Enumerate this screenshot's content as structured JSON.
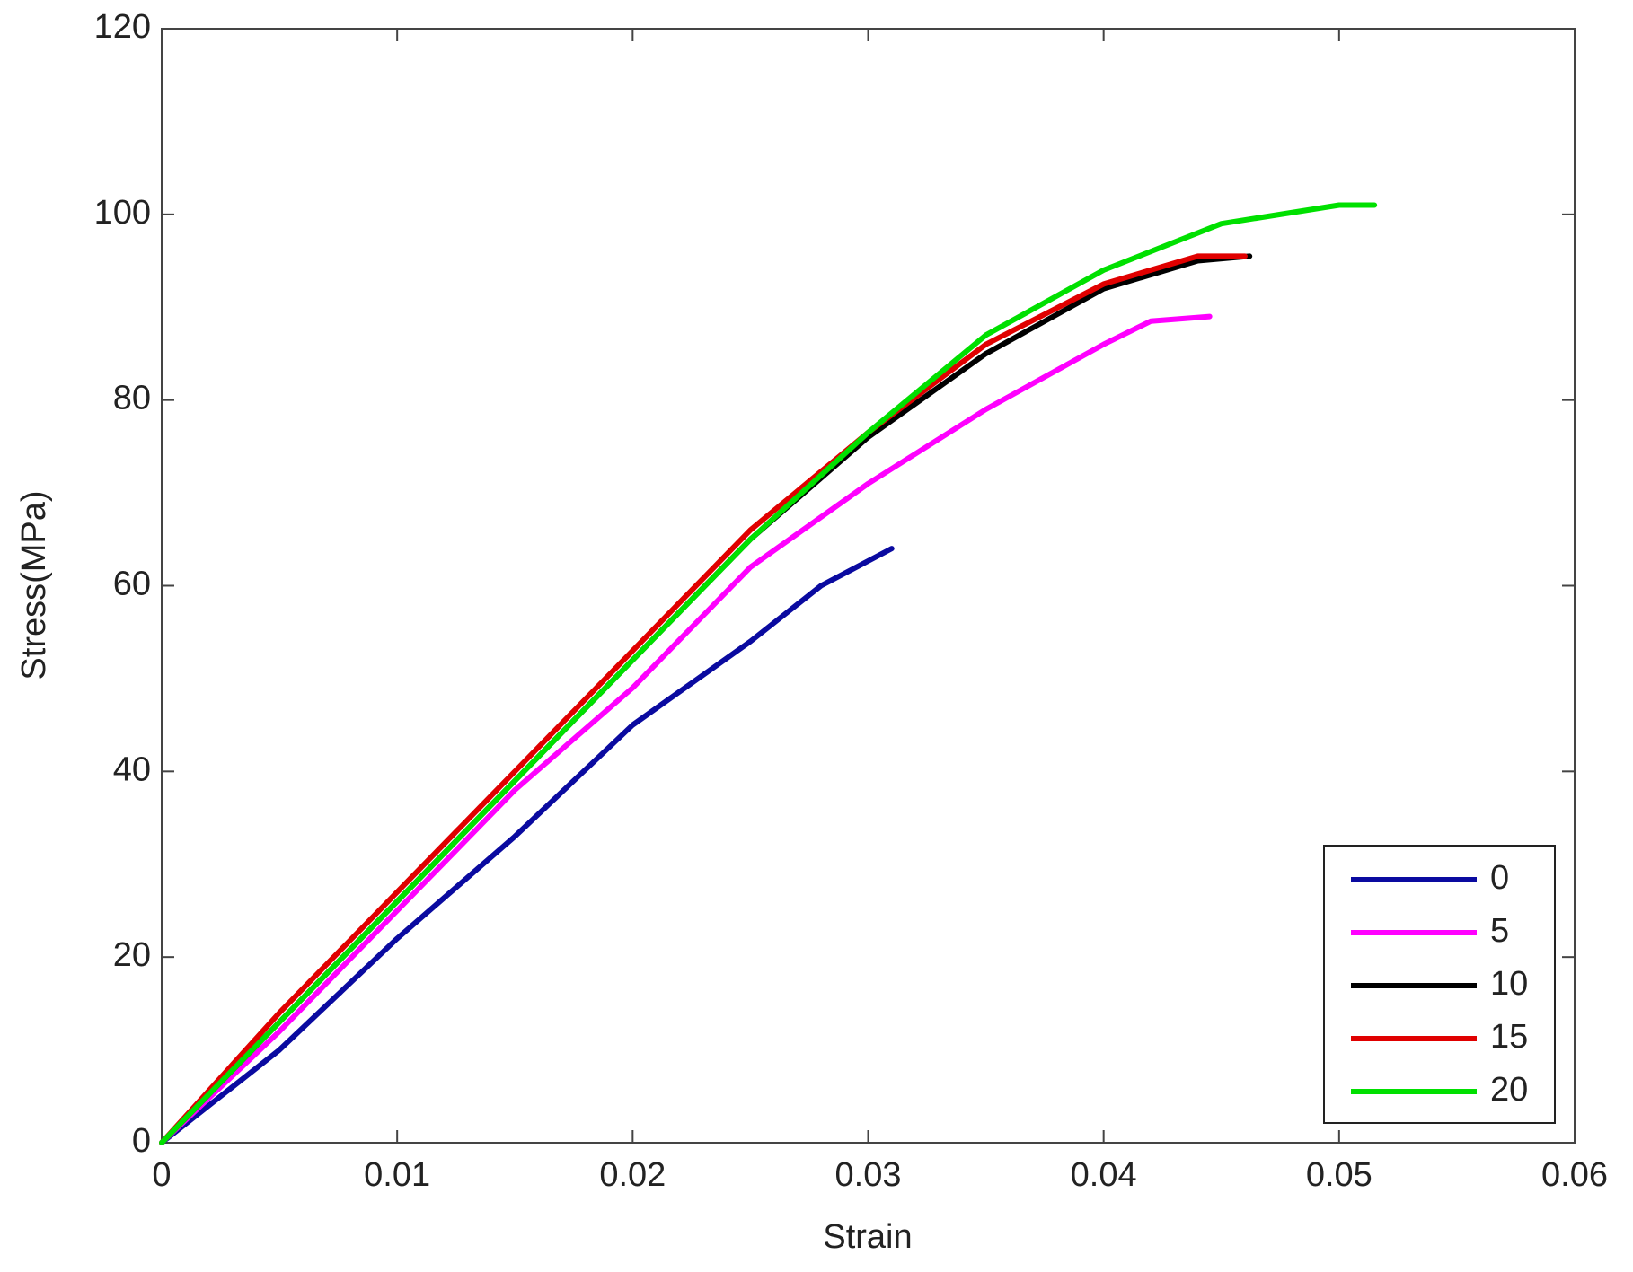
{
  "chart_data": {
    "type": "line",
    "xlabel": "Strain",
    "ylabel": "Stress(MPa)",
    "xlim": [
      0,
      0.06
    ],
    "xticks": [
      0,
      0.01,
      0.02,
      0.03,
      0.04,
      0.05,
      0.06
    ],
    "ylim": [
      0,
      120
    ],
    "yticks": [
      0,
      20,
      40,
      60,
      80,
      100,
      120
    ],
    "legend": "lower right",
    "series": [
      {
        "name": "0",
        "color": "#0a0aa0",
        "x": [
          0,
          0.005,
          0.01,
          0.015,
          0.02,
          0.025,
          0.028,
          0.031
        ],
        "values": [
          0,
          10,
          22,
          33,
          45,
          54,
          60,
          64
        ]
      },
      {
        "name": "5",
        "color": "#ff00ff",
        "x": [
          0,
          0.005,
          0.01,
          0.015,
          0.02,
          0.025,
          0.03,
          0.035,
          0.04,
          0.042,
          0.0445
        ],
        "values": [
          0,
          12,
          25,
          38,
          49,
          62,
          71,
          79,
          86,
          88.5,
          89
        ]
      },
      {
        "name": "10",
        "color": "#000000",
        "x": [
          0,
          0.005,
          0.01,
          0.015,
          0.02,
          0.025,
          0.03,
          0.035,
          0.04,
          0.044,
          0.0462
        ],
        "values": [
          0,
          13,
          26,
          39,
          52,
          65,
          76,
          85,
          92,
          95,
          95.5
        ]
      },
      {
        "name": "15",
        "color": "#e00000",
        "x": [
          0,
          0.005,
          0.01,
          0.015,
          0.02,
          0.025,
          0.03,
          0.035,
          0.04,
          0.044,
          0.046
        ],
        "values": [
          0,
          14,
          27,
          40,
          53,
          66,
          76.5,
          86,
          92.5,
          95.5,
          95.5
        ]
      },
      {
        "name": "20",
        "color": "#00e000",
        "x": [
          0,
          0.005,
          0.01,
          0.015,
          0.02,
          0.025,
          0.03,
          0.035,
          0.04,
          0.045,
          0.05,
          0.0515
        ],
        "values": [
          0,
          13,
          26,
          39,
          52,
          65,
          76.5,
          87,
          94,
          99,
          101,
          101
        ]
      }
    ]
  }
}
